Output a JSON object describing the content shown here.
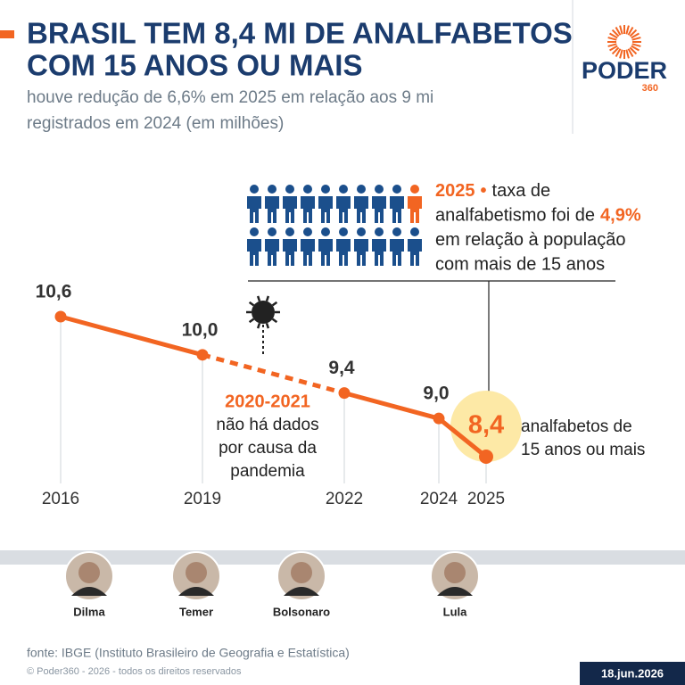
{
  "header": {
    "title_lines": [
      "BRASIL TEM 8,4 MI DE ANALFABETOS",
      "COM 15 ANOS OU MAIS"
    ],
    "subtitle_lines": [
      "houve redução de 6,6% em 2025 em relação aos 9 mi",
      "registrados em 2024 (em milhões)"
    ],
    "logo": {
      "name": "PODER",
      "number": "360"
    }
  },
  "chart_data": {
    "type": "line",
    "x": [
      2016,
      2019,
      2022,
      2024,
      2025
    ],
    "values": [
      10.6,
      10.0,
      9.4,
      9.0,
      8.4
    ],
    "value_labels": [
      "10,6",
      "10,0",
      "9,4",
      "9,0",
      "8,4"
    ],
    "color": "#f26522",
    "line_style": [
      "solid",
      "dashed",
      "solid",
      "solid"
    ],
    "highlight_color": "#fde9a6",
    "gap_annotation": {
      "title": "2020-2021",
      "lines": [
        "não há dados",
        "por causa da",
        "pandemia"
      ]
    },
    "highlight_annotation": [
      "analfabetos de",
      "15 anos ou mais"
    ]
  },
  "infobox": {
    "lines": [
      [
        {
          "text": "2025",
          "highlight": true
        },
        {
          "text": "•",
          "highlight": true
        },
        {
          "text": "taxa de"
        }
      ],
      [
        {
          "text": "analfabetismo foi de"
        },
        {
          "text": "4,9%",
          "highlight": true
        }
      ],
      [
        {
          "text": "em relação à população"
        }
      ],
      [
        {
          "text": "com mais de 15 anos"
        }
      ]
    ]
  },
  "presidents": [
    "Dilma",
    "Temer",
    "Bolsonaro",
    "Lula"
  ],
  "footer": {
    "source": "fonte: IBGE (Instituto Brasileiro de Geografia e Estatística)",
    "copyright": "© Poder360 - 2026 - todos os direitos reservados",
    "date": "18.jun.2026"
  }
}
